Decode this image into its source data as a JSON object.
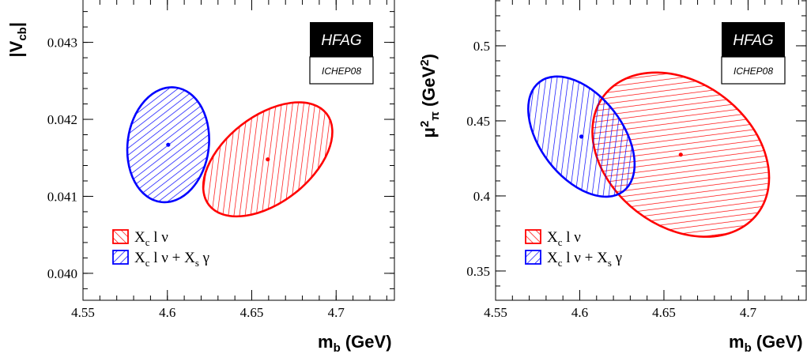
{
  "chart_data": [
    {
      "type": "contour",
      "xlabel": {
        "main": "m",
        "sub": "b",
        "rest": " (GeV)"
      },
      "ylabel": {
        "parts": [
          {
            "t": "|V"
          },
          {
            "t": "cb",
            "s": "sub"
          },
          {
            "t": "|"
          }
        ]
      },
      "xlim": [
        4.55,
        4.735
      ],
      "ylim": [
        0.03965,
        0.04355
      ],
      "xticks": [
        {
          "v": 4.55,
          "label": "4.55"
        },
        {
          "v": 4.6,
          "label": "4.6"
        },
        {
          "v": 4.65,
          "label": "4.65"
        },
        {
          "v": 4.7,
          "label": "4.7"
        }
      ],
      "yticks": [
        {
          "v": 0.04,
          "label": "0.040"
        },
        {
          "v": 0.041,
          "label": "0.041"
        },
        {
          "v": 0.042,
          "label": "0.042"
        },
        {
          "v": 0.043,
          "label": "0.043"
        }
      ],
      "x_minor_step": 0.01,
      "y_minor_step": 0.0002,
      "badge": {
        "main": "HFAG",
        "sub": "ICHEP08"
      },
      "series": [
        {
          "color": "#ff0000",
          "hatch": "forward",
          "center": [
            4.6595,
            0.04148
          ],
          "ellipse": [
            [
              4.6765,
              0.04222
            ],
            [
              4.6975,
              0.04176
            ],
            [
              4.6755,
              0.04104
            ],
            [
              4.6475,
              0.04103
            ],
            [
              4.6265,
              0.04147
            ],
            [
              4.6465,
              0.04204
            ]
          ]
        },
        {
          "color": "#0000ff",
          "hatch": "back",
          "center": [
            4.6005,
            0.04167
          ],
          "ellipse": [
            [
              4.5905,
              0.04232
            ],
            [
              4.6235,
              0.04197
            ],
            [
              4.6085,
              0.04099
            ],
            [
              4.5675,
              0.04142
            ]
          ]
        }
      ],
      "legend": [
        {
          "color": "#ff0000",
          "hatch": "forward",
          "parts": [
            {
              "t": "X"
            },
            {
              "t": "c",
              "s": "sub"
            },
            {
              "t": " l ν"
            }
          ]
        },
        {
          "color": "#0000ff",
          "hatch": "back",
          "parts": [
            {
              "t": "X"
            },
            {
              "t": "c",
              "s": "sub"
            },
            {
              "t": " l ν + X"
            },
            {
              "t": "s",
              "s": "sub"
            },
            {
              "t": " γ"
            }
          ]
        }
      ]
    },
    {
      "type": "contour",
      "xlabel": {
        "main": "m",
        "sub": "b",
        "rest": " (GeV)"
      },
      "ylabel": {
        "parts": [
          {
            "t": "μ"
          },
          {
            "t": "2",
            "s": "sup"
          },
          {
            "t": "π",
            "s": "sub"
          },
          {
            "t": " (GeV"
          },
          {
            "t": "2",
            "s": "sup"
          },
          {
            "t": ")"
          }
        ]
      },
      "xlim": [
        4.55,
        4.735
      ],
      "ylim": [
        0.3305,
        0.5305
      ],
      "xticks": [
        {
          "v": 4.55,
          "label": "4.55"
        },
        {
          "v": 4.6,
          "label": "4.6"
        },
        {
          "v": 4.65,
          "label": "4.65"
        },
        {
          "v": 4.7,
          "label": "4.7"
        }
      ],
      "yticks": [
        {
          "v": 0.35,
          "label": "0.35"
        },
        {
          "v": 0.4,
          "label": "0.4"
        },
        {
          "v": 0.45,
          "label": "0.45"
        },
        {
          "v": 0.5,
          "label": "0.5"
        }
      ],
      "x_minor_step": 0.01,
      "y_minor_step": 0.01,
      "badge": {
        "main": "HFAG",
        "sub": "ICHEP08"
      },
      "series": [
        {
          "color": "#ff0000",
          "hatch": "forward",
          "center": [
            4.66,
            0.4275
          ],
          "ellipse": [
            [
              4.6795,
              0.4705
            ],
            [
              4.7115,
              0.4225
            ],
            [
              4.6825,
              0.3735
            ],
            [
              4.6475,
              0.3915
            ],
            [
              4.6085,
              0.4345
            ],
            [
              4.6345,
              0.4665
            ]
          ]
        },
        {
          "color": "#0000ff",
          "hatch": "back",
          "center": [
            4.601,
            0.4395
          ],
          "ellipse": [
            [
              4.5875,
              0.4795
            ],
            [
              4.6325,
              0.4185
            ],
            [
              4.6165,
              0.3995
            ],
            [
              4.5655,
              0.4585
            ]
          ]
        }
      ],
      "legend": [
        {
          "color": "#ff0000",
          "hatch": "forward",
          "parts": [
            {
              "t": "X"
            },
            {
              "t": "c",
              "s": "sub"
            },
            {
              "t": " l ν"
            }
          ]
        },
        {
          "color": "#0000ff",
          "hatch": "back",
          "parts": [
            {
              "t": "X"
            },
            {
              "t": "c",
              "s": "sub"
            },
            {
              "t": " l ν + X"
            },
            {
              "t": "s",
              "s": "sub"
            },
            {
              "t": " γ"
            }
          ]
        }
      ]
    }
  ]
}
